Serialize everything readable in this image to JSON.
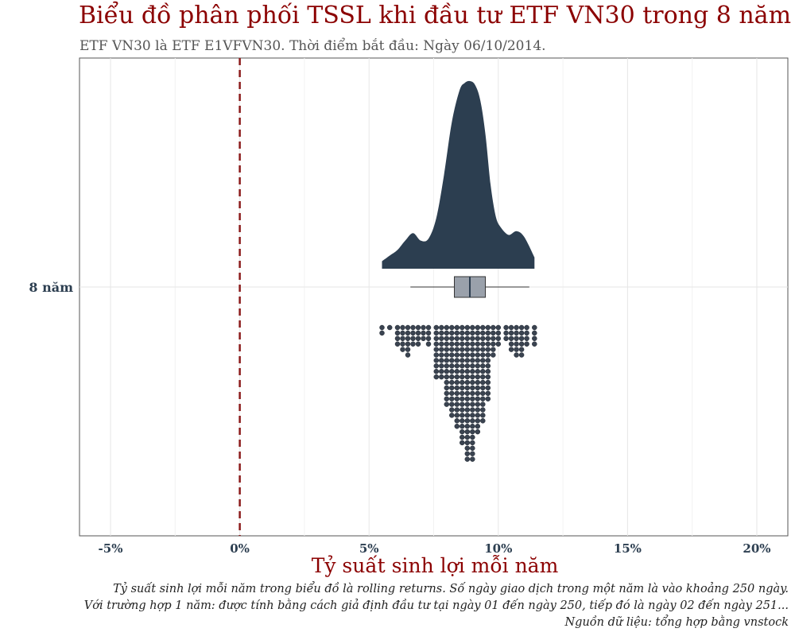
{
  "header": {
    "title": "Biểu đồ phân phối TSSL khi đầu tư ETF VN30 trong 8 năm",
    "subtitle": "ETF VN30 là ETF E1VFVN30.  Thời điểm bắt đầu: Ngày 06/10/2014."
  },
  "footer": {
    "caption_lines": [
      "Tỷ suất sinh lợi mỗi năm trong biểu đồ là rolling returns. Số ngày giao dịch trong một năm là vào khoảng 250 ngày.",
      "Với trường hợp 1 năm: được tính bằng cách giả định đầu tư tại ngày 01 đến ngày 250, tiếp đó là ngày 02 đến ngày 251...",
      "Nguồn dữ liệu: tổng hợp bằng vnstock"
    ]
  },
  "colors": {
    "title": "#8b0000",
    "density": "#2c3e50",
    "box": "#9aa1ab",
    "dots": "#3a4350",
    "reference_line": "#8b1a1a",
    "grid": "#e6e6e6"
  },
  "chart_data": {
    "type": "raincloud",
    "xlabel": "Tỷ suất sinh lợi mỗi năm",
    "ylabel": "",
    "category": "8 năm",
    "xlim": [
      -6.2,
      21.2
    ],
    "x_ticks": [
      -5,
      0,
      5,
      10,
      15,
      20
    ],
    "x_tick_labels": [
      "-5%",
      "0%",
      "5%",
      "10%",
      "15%",
      "20%"
    ],
    "reference_line_x": 0,
    "grid": true,
    "box": {
      "min": 6.6,
      "q1": 8.3,
      "median": 8.9,
      "q3": 9.5,
      "max": 11.2
    },
    "density": {
      "x": [
        5.5,
        5.8,
        6.1,
        6.4,
        6.7,
        7.0,
        7.3,
        7.6,
        7.9,
        8.2,
        8.5,
        8.7,
        8.9,
        9.1,
        9.3,
        9.5,
        9.7,
        9.9,
        10.1,
        10.4,
        10.7,
        11.0,
        11.4
      ],
      "y": [
        0.04,
        0.07,
        0.1,
        0.15,
        0.19,
        0.15,
        0.16,
        0.27,
        0.5,
        0.78,
        0.95,
        0.99,
        1.0,
        0.98,
        0.9,
        0.72,
        0.45,
        0.28,
        0.22,
        0.18,
        0.2,
        0.17,
        0.06
      ]
    },
    "dotplot": {
      "x": [
        5.5,
        5.8,
        6.1,
        6.3,
        6.5,
        6.7,
        6.9,
        7.1,
        7.3,
        7.6,
        7.8,
        8.0,
        8.2,
        8.4,
        8.6,
        8.8,
        9.0,
        9.2,
        9.4,
        9.6,
        9.8,
        10.0,
        10.3,
        10.5,
        10.7,
        10.9,
        11.1,
        11.4
      ],
      "counts": [
        2,
        1,
        4,
        5,
        6,
        4,
        4,
        3,
        4,
        10,
        10,
        15,
        17,
        19,
        22,
        25,
        25,
        20,
        18,
        14,
        6,
        4,
        3,
        5,
        6,
        6,
        4,
        4
      ]
    }
  }
}
